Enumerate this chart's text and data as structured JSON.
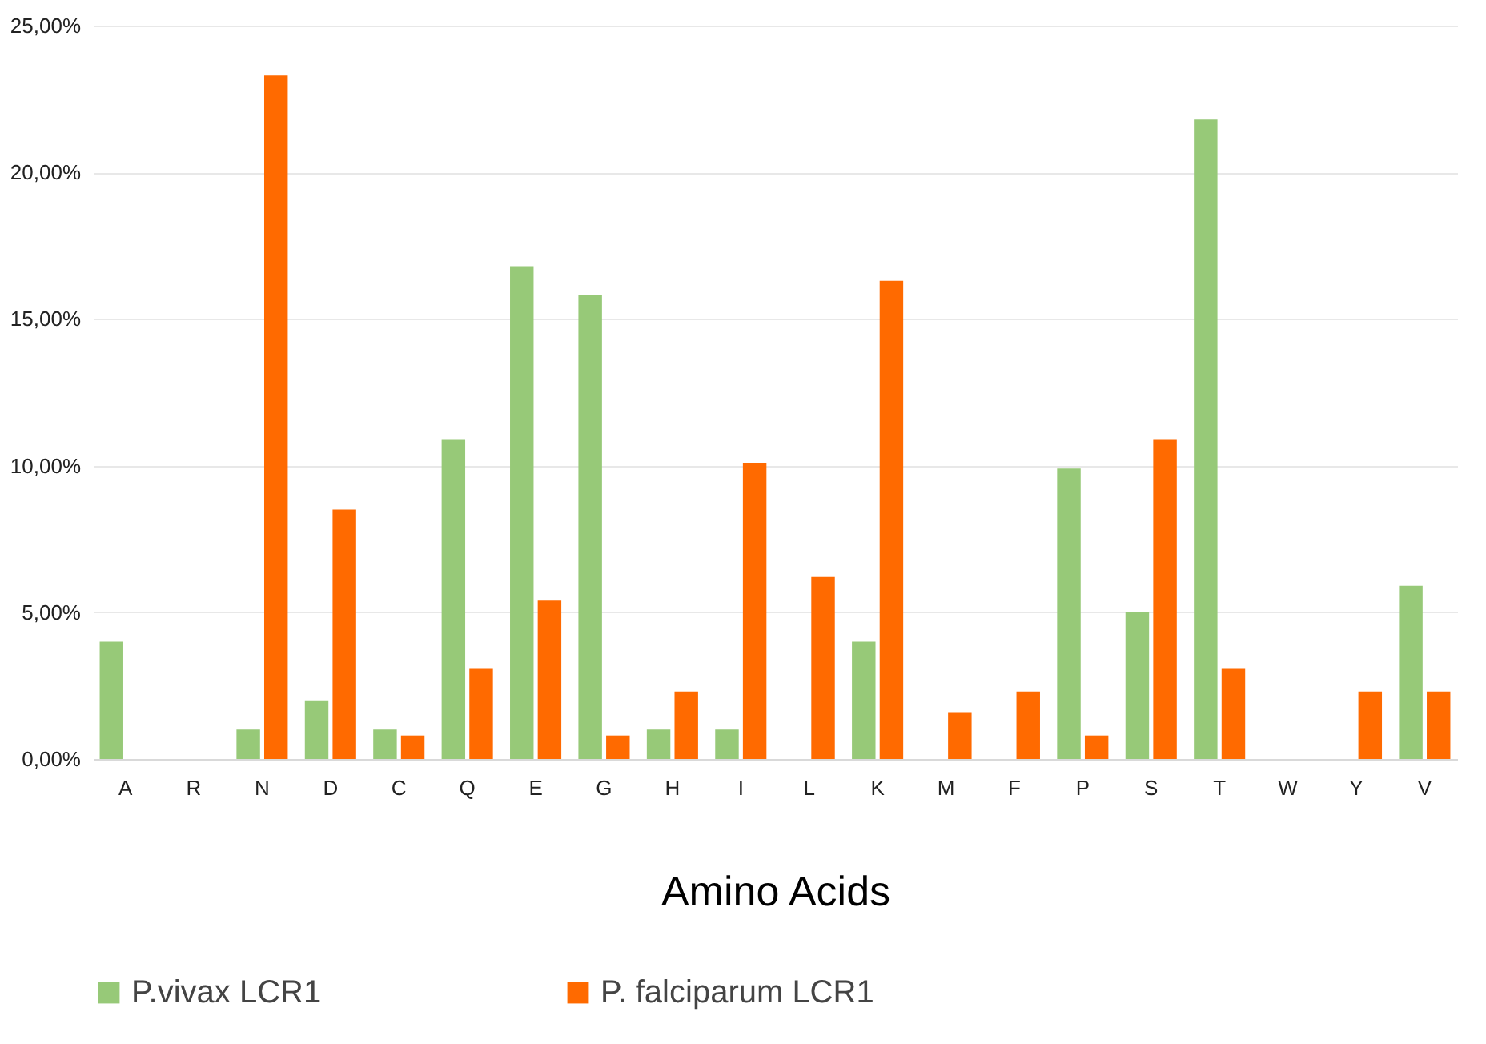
{
  "chart_data": {
    "type": "bar",
    "xlabel": "Amino Acids",
    "categories": [
      "A",
      "R",
      "N",
      "D",
      "C",
      "Q",
      "E",
      "G",
      "H",
      "I",
      "L",
      "K",
      "M",
      "F",
      "P",
      "S",
      "T",
      "W",
      "Y",
      "V"
    ],
    "series": [
      {
        "name": "P.vivax LCR1",
        "color": "#97c978",
        "values": [
          4.0,
          0,
          1.0,
          2.0,
          1.0,
          10.9,
          16.8,
          15.8,
          1.0,
          1.0,
          0,
          4.0,
          0,
          0,
          9.9,
          5.0,
          21.8,
          0,
          0,
          5.9
        ]
      },
      {
        "name": "P. falciparum LCR1",
        "color": "#ff6a00",
        "values": [
          0,
          0,
          23.3,
          8.5,
          0.8,
          3.1,
          5.4,
          0.8,
          2.3,
          10.1,
          6.2,
          16.3,
          1.6,
          2.3,
          0.8,
          10.9,
          3.1,
          0,
          2.3,
          2.3
        ]
      }
    ],
    "ylim": [
      0,
      25
    ],
    "yticks": [
      {
        "value": 0,
        "label": "0,00%"
      },
      {
        "value": 5,
        "label": "5,00%"
      },
      {
        "value": 10,
        "label": "10,00%"
      },
      {
        "value": 15,
        "label": "15,00%"
      },
      {
        "value": 20,
        "label": "20,00%"
      },
      {
        "value": 25,
        "label": "25,00%"
      }
    ],
    "grid": "y",
    "legend": "bottom"
  }
}
